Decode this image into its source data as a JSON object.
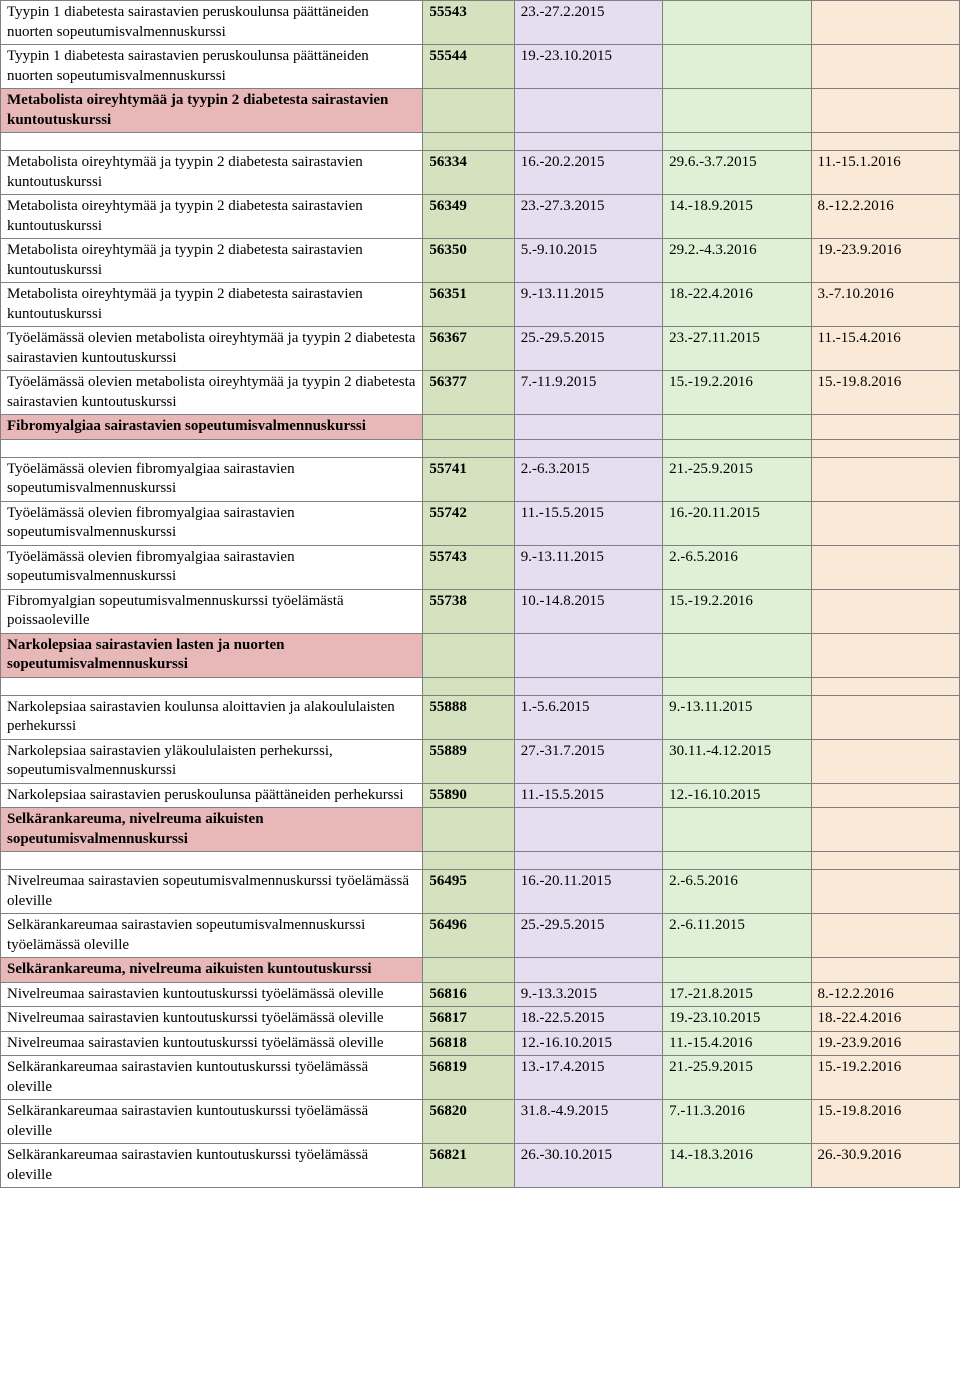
{
  "colors": {
    "pink": "#e8b8b8",
    "green": "#d5e2c0",
    "lavender": "#e4def0",
    "mint": "#def0d5",
    "peach": "#fbe9d8"
  },
  "rows": [
    {
      "type": "data",
      "c0": "Tyypin 1 diabetesta sairastavien peruskoulunsa päättäneiden nuorten sopeutumisvalmennuskurssi",
      "c1": "55543",
      "c2": "23.-27.2.2015",
      "c3": "",
      "c4": ""
    },
    {
      "type": "data",
      "c0": "Tyypin 1 diabetesta sairastavien peruskoulunsa päättäneiden nuorten sopeutumisvalmennuskurssi",
      "c1": "55544",
      "c2": "19.-23.10.2015",
      "c3": "",
      "c4": ""
    },
    {
      "type": "header",
      "c0": "Metabolista oireyhtymää ja tyypin 2 diabetesta sairastavien kuntoutuskurssi"
    },
    {
      "type": "spacer"
    },
    {
      "type": "data",
      "c0": "Metabolista oireyhtymää ja tyypin 2 diabetesta sairastavien kuntoutuskurssi",
      "c1": "56334",
      "c2": "16.-20.2.2015",
      "c3": "29.6.-3.7.2015",
      "c4": "11.-15.1.2016"
    },
    {
      "type": "data",
      "c0": "Metabolista oireyhtymää ja tyypin 2 diabetesta sairastavien kuntoutuskurssi",
      "c1": "56349",
      "c2": "23.-27.3.2015",
      "c3": "14.-18.9.2015",
      "c4": "8.-12.2.2016"
    },
    {
      "type": "data",
      "c0": "Metabolista oireyhtymää ja tyypin 2 diabetesta sairastavien kuntoutuskurssi",
      "c1": "56350",
      "c2": "5.-9.10.2015",
      "c3": "29.2.-4.3.2016",
      "c4": "19.-23.9.2016"
    },
    {
      "type": "data",
      "c0": "Metabolista oireyhtymää ja tyypin 2 diabetesta sairastavien kuntoutuskurssi",
      "c1": "56351",
      "c2": "9.-13.11.2015",
      "c3": "18.-22.4.2016",
      "c4": "3.-7.10.2016"
    },
    {
      "type": "data",
      "c0": "Työelämässä olevien metabolista oireyhtymää ja tyypin 2 diabetesta sairastavien kuntoutuskurssi",
      "c1": "56367",
      "c2": "25.-29.5.2015",
      "c3": "23.-27.11.2015",
      "c4": "11.-15.4.2016"
    },
    {
      "type": "data",
      "c0": "Työelämässä olevien metabolista oireyhtymää ja tyypin 2 diabetesta sairastavien kuntoutuskurssi",
      "c1": "56377",
      "c2": "7.-11.9.2015",
      "c3": "15.-19.2.2016",
      "c4": "15.-19.8.2016"
    },
    {
      "type": "header",
      "c0": "Fibromyalgiaa sairastavien sopeutumisvalmennuskurssi"
    },
    {
      "type": "spacer"
    },
    {
      "type": "data",
      "c0": "Työelämässä olevien fibromyalgiaa sairastavien sopeutumisvalmennuskurssi",
      "c1": "55741",
      "c2": "2.-6.3.2015",
      "c3": "21.-25.9.2015",
      "c4": ""
    },
    {
      "type": "data",
      "c0": "Työelämässä olevien fibromyalgiaa sairastavien sopeutumisvalmennuskurssi",
      "c1": "55742",
      "c2": "11.-15.5.2015",
      "c3": "16.-20.11.2015",
      "c4": ""
    },
    {
      "type": "data",
      "c0": "Työelämässä olevien fibromyalgiaa sairastavien sopeutumisvalmennuskurssi",
      "c1": "55743",
      "c2": "9.-13.11.2015",
      "c3": "2.-6.5.2016",
      "c4": ""
    },
    {
      "type": "data",
      "c0": "Fibromyalgian sopeutumisvalmennuskurssi työelämästä poissaoleville",
      "c1": "55738",
      "c2": "10.-14.8.2015",
      "c3": "15.-19.2.2016",
      "c4": ""
    },
    {
      "type": "header",
      "c0": "Narkolepsiaa sairastavien lasten ja nuorten sopeutumisvalmennuskurssi"
    },
    {
      "type": "spacer"
    },
    {
      "type": "data",
      "c0": "Narkolepsiaa sairastavien koulunsa aloittavien ja alakoululaisten perhekurssi",
      "c1": "55888",
      "c2": "1.-5.6.2015",
      "c3": "9.-13.11.2015",
      "c4": ""
    },
    {
      "type": "data",
      "c0": "Narkolepsiaa sairastavien yläkoululaisten perhekurssi, sopeutumisvalmennuskurssi",
      "c1": "55889",
      "c2": "27.-31.7.2015",
      "c3": "30.11.-4.12.2015",
      "c4": ""
    },
    {
      "type": "data",
      "c0": "Narkolepsiaa sairastavien peruskoulunsa päättäneiden perhekurssi",
      "c1": "55890",
      "c2": "11.-15.5.2015",
      "c3": "12.-16.10.2015",
      "c4": ""
    },
    {
      "type": "header",
      "c0": "Selkärankareuma, nivelreuma aikuisten sopeutumisvalmennuskurssi"
    },
    {
      "type": "spacer"
    },
    {
      "type": "data",
      "c0": "Nivelreumaa sairastavien sopeutumisvalmennuskurssi työelämässä oleville",
      "c1": "56495",
      "c2": "16.-20.11.2015",
      "c3": "2.-6.5.2016",
      "c4": ""
    },
    {
      "type": "data",
      "c0": "Selkärankareumaa sairastavien sopeutumisvalmennuskurssi työelämässä oleville",
      "c1": "56496",
      "c2": "25.-29.5.2015",
      "c3": "2.-6.11.2015",
      "c4": ""
    },
    {
      "type": "header",
      "c0": "Selkärankareuma, nivelreuma aikuisten kuntoutuskurssi"
    },
    {
      "type": "data",
      "c0": "Nivelreumaa sairastavien kuntoutuskurssi työelämässä oleville",
      "c1": "56816",
      "c2": "9.-13.3.2015",
      "c3": "17.-21.8.2015",
      "c4": "8.-12.2.2016"
    },
    {
      "type": "data",
      "c0": "Nivelreumaa sairastavien kuntoutuskurssi työelämässä oleville",
      "c1": "56817",
      "c2": "18.-22.5.2015",
      "c3": "19.-23.10.2015",
      "c4": "18.-22.4.2016"
    },
    {
      "type": "data",
      "c0": "Nivelreumaa sairastavien kuntoutuskurssi työelämässä oleville",
      "c1": "56818",
      "c2": "12.-16.10.2015",
      "c3": "11.-15.4.2016",
      "c4": "19.-23.9.2016"
    },
    {
      "type": "data",
      "c0": "Selkärankareumaa sairastavien kuntoutuskurssi työelämässä oleville",
      "c1": "56819",
      "c2": "13.-17.4.2015",
      "c3": "21.-25.9.2015",
      "c4": "15.-19.2.2016"
    },
    {
      "type": "data",
      "c0": "Selkärankareumaa sairastavien kuntoutuskurssi työelämässä oleville",
      "c1": "56820",
      "c2": "31.8.-4.9.2015",
      "c3": "7.-11.3.2016",
      "c4": "15.-19.8.2016"
    },
    {
      "type": "data",
      "c0": "Selkärankareumaa sairastavien kuntoutuskurssi työelämässä oleville",
      "c1": "56821",
      "c2": "26.-30.10.2015",
      "c3": "14.-18.3.2016",
      "c4": "26.-30.9.2016"
    }
  ]
}
